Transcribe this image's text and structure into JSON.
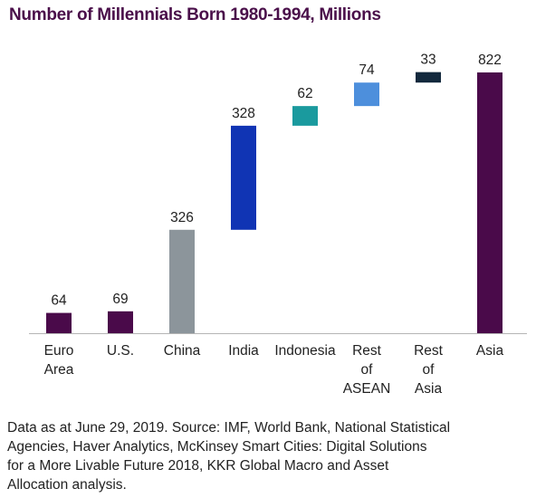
{
  "title": "Number of Millennials Born 1980-1994, Millions",
  "source_lines": [
    "Data as at June 29, 2019. Source: IMF, World Bank, National Statistical",
    "Agencies, Haver Analytics, McKinsey Smart Cities: Digital Solutions",
    "for a More Livable Future 2018, KKR Global Macro and Asset",
    "Allocation analysis."
  ],
  "chart_data": {
    "type": "bar",
    "subtype": "waterfall",
    "title": "Number of Millennials Born 1980-1994, Millions",
    "xlabel": "",
    "ylabel": "",
    "grid": false,
    "legend": "none",
    "categories": [
      [
        "Euro",
        "Area"
      ],
      [
        "U.S."
      ],
      [
        "China"
      ],
      [
        "India"
      ],
      [
        "Indonesia"
      ],
      [
        "Rest",
        "of",
        "ASEAN"
      ],
      [
        "Rest",
        "of",
        "Asia"
      ],
      [
        "Asia"
      ]
    ],
    "values": [
      64,
      69,
      326,
      328,
      62,
      74,
      33,
      822
    ],
    "data_labels": [
      "64",
      "69",
      "326",
      "328",
      "62",
      "74",
      "33",
      "822"
    ],
    "bar_kind": [
      "standalone",
      "standalone",
      "start",
      "increment",
      "increment",
      "increment",
      "increment",
      "total"
    ],
    "colors": [
      "#4a0a4a",
      "#4a0a4a",
      "#8c959b",
      "#1034b4",
      "#1a9a9e",
      "#4d8fdc",
      "#13293d",
      "#4a0a4a"
    ]
  }
}
